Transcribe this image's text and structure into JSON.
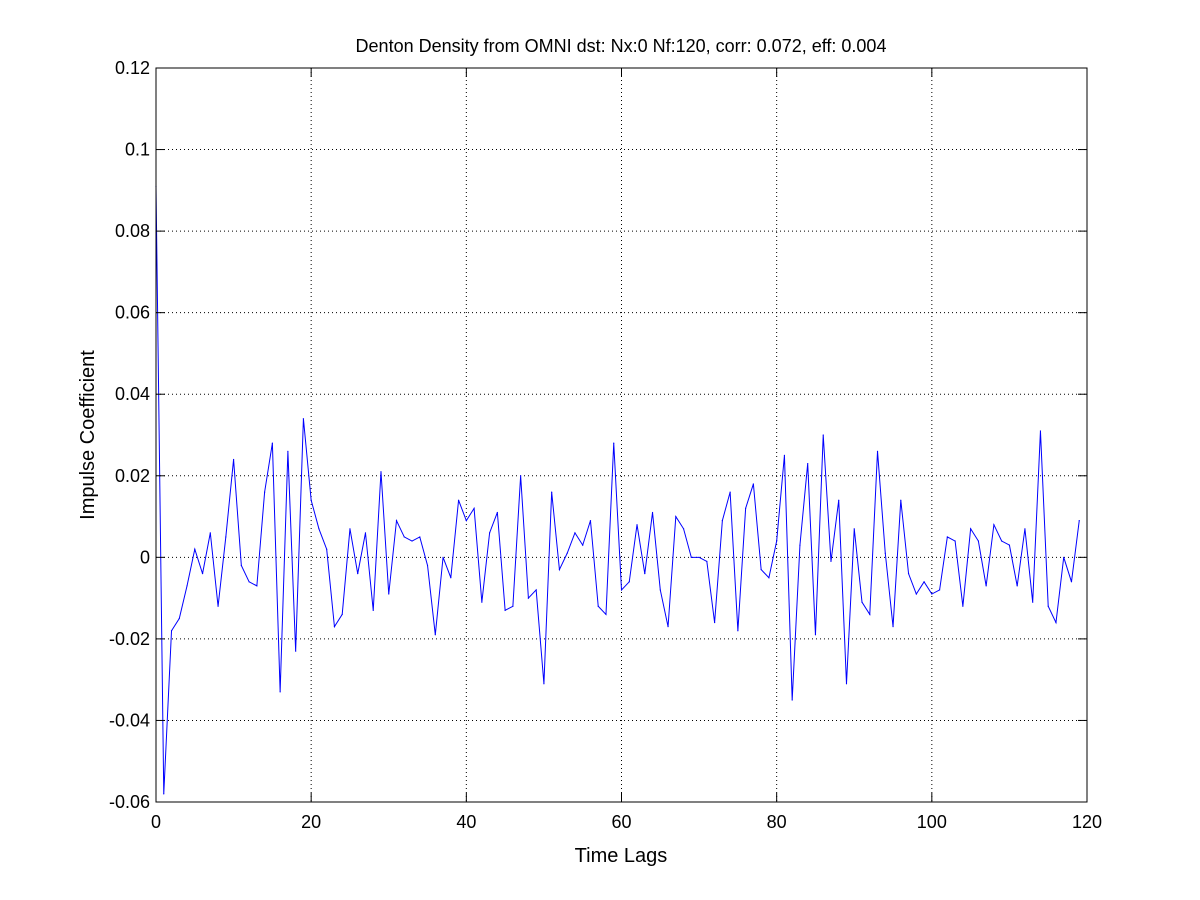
{
  "chart_data": {
    "type": "line",
    "title": "Denton Density from OMNI dst: Nx:0 Nf:120, corr: 0.072, eff: 0.004",
    "xlabel": "Time Lags",
    "ylabel": "Impulse Coefficient",
    "xlim": [
      0,
      120
    ],
    "ylim": [
      -0.06,
      0.12
    ],
    "xticks": [
      0,
      20,
      40,
      60,
      80,
      100,
      120
    ],
    "yticks": [
      -0.06,
      -0.04,
      -0.02,
      0,
      0.02,
      0.04,
      0.06,
      0.08,
      0.1,
      0.12
    ],
    "xtick_labels": [
      "0",
      "20",
      "40",
      "60",
      "80",
      "100",
      "120"
    ],
    "ytick_labels": [
      "-0.06",
      "-0.04",
      "-0.02",
      "0",
      "0.02",
      "0.04",
      "0.06",
      "0.08",
      "0.1",
      "0.12"
    ],
    "grid": true,
    "line_color": "#0000ff",
    "series": [
      {
        "x": [
          0,
          1,
          2,
          3,
          4,
          5,
          6,
          7,
          8,
          9,
          10,
          11,
          12,
          13,
          14,
          15,
          16,
          17,
          18,
          19,
          20,
          21,
          22,
          23,
          24,
          25,
          26,
          27,
          28,
          29,
          30,
          31,
          32,
          33,
          34,
          35,
          36,
          37,
          38,
          39,
          40,
          41,
          42,
          43,
          44,
          45,
          46,
          47,
          48,
          49,
          50,
          51,
          52,
          53,
          54,
          55,
          56,
          57,
          58,
          59,
          60,
          61,
          62,
          63,
          64,
          65,
          66,
          67,
          68,
          69,
          70,
          71,
          72,
          73,
          74,
          75,
          76,
          77,
          78,
          79,
          80,
          81,
          82,
          83,
          84,
          85,
          86,
          87,
          88,
          89,
          90,
          91,
          92,
          93,
          94,
          95,
          96,
          97,
          98,
          99,
          100,
          101,
          102,
          103,
          104,
          105,
          106,
          107,
          108,
          109,
          110,
          111,
          112,
          113,
          114,
          115,
          116,
          117,
          118,
          119
        ],
        "values": [
          0.091,
          -0.058,
          -0.018,
          -0.015,
          -0.007,
          0.002,
          -0.004,
          0.006,
          -0.012,
          0.005,
          0.024,
          -0.002,
          -0.006,
          -0.007,
          0.016,
          0.028,
          -0.033,
          0.026,
          -0.023,
          0.034,
          0.014,
          0.007,
          0.002,
          -0.017,
          -0.014,
          0.007,
          -0.004,
          0.006,
          -0.013,
          0.021,
          -0.009,
          0.009,
          0.005,
          0.004,
          0.005,
          -0.002,
          -0.019,
          0.0,
          -0.005,
          0.014,
          0.009,
          0.012,
          -0.011,
          0.006,
          0.011,
          -0.013,
          -0.012,
          0.02,
          -0.01,
          -0.008,
          -0.031,
          0.016,
          -0.003,
          0.001,
          0.006,
          0.003,
          0.009,
          -0.012,
          -0.014,
          0.028,
          -0.008,
          -0.006,
          0.008,
          -0.004,
          0.011,
          -0.008,
          -0.017,
          0.01,
          0.007,
          0.0,
          0.0,
          -0.001,
          -0.016,
          0.009,
          0.016,
          -0.018,
          0.012,
          0.018,
          -0.003,
          -0.005,
          0.004,
          0.025,
          -0.035,
          0.003,
          0.023,
          -0.019,
          0.03,
          -0.001,
          0.014,
          -0.031,
          0.007,
          -0.011,
          -0.014,
          0.026,
          0.001,
          -0.017,
          0.014,
          -0.004,
          -0.009,
          -0.006,
          -0.009,
          -0.008,
          0.005,
          0.004,
          -0.012,
          0.007,
          0.004,
          -0.007,
          0.008,
          0.004,
          0.003,
          -0.007,
          0.007,
          -0.011,
          0.031,
          -0.012,
          -0.016,
          0.0,
          -0.006,
          0.009
        ]
      }
    ]
  }
}
